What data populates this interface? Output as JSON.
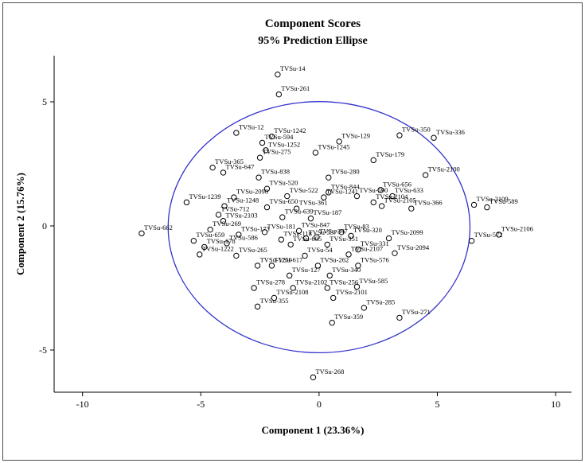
{
  "figure": {
    "title": "Component Scores",
    "subtitle": "95% Prediction Ellipse"
  },
  "chart_data": {
    "type": "scatter",
    "title": "Component Scores",
    "subtitle": "95% Prediction Ellipse",
    "xlabel": "Component 1 (23.36%)",
    "ylabel": "Component 2 (15.76%)",
    "xlim": [
      -11.2,
      10.67
    ],
    "ylim": [
      -6.7,
      6.86
    ],
    "xticks": [
      -10,
      -5,
      0,
      5,
      10
    ],
    "yticks": [
      -5,
      0,
      5
    ],
    "grid": false,
    "legend": "none",
    "marker": "open-circle",
    "marker_color": "#000000",
    "ellipse": {
      "label": "95% Prediction Ellipse",
      "cx": 0.0,
      "cy": -0.05,
      "rx": 6.38,
      "ry": 5.06,
      "color": "#3333cc"
    },
    "points": [
      {
        "label": "TVSu-14",
        "x": -1.75,
        "y": 6.1
      },
      {
        "label": "TVSu-261",
        "x": -1.7,
        "y": 5.3
      },
      {
        "label": "TVSu-12",
        "x": -3.5,
        "y": 3.75
      },
      {
        "label": "TVSu-1242",
        "x": -2.0,
        "y": 3.6
      },
      {
        "label": "TVSu-594",
        "x": -2.4,
        "y": 3.35
      },
      {
        "label": "TVSu-129",
        "x": 0.85,
        "y": 3.4
      },
      {
        "label": "TVSu-350",
        "x": 3.4,
        "y": 3.65
      },
      {
        "label": "TVSu-336",
        "x": 4.85,
        "y": 3.55
      },
      {
        "label": "TVSu-1252",
        "x": -2.25,
        "y": 3.05
      },
      {
        "label": "TVSu-1245",
        "x": -0.15,
        "y": 2.95
      },
      {
        "label": "TVSu-275",
        "x": -2.5,
        "y": 2.75
      },
      {
        "label": "TVSu-179",
        "x": 2.3,
        "y": 2.65
      },
      {
        "label": "TVSu-365",
        "x": -4.5,
        "y": 2.35
      },
      {
        "label": "TVSu-647",
        "x": -4.05,
        "y": 2.15
      },
      {
        "label": "TVSu-838",
        "x": -2.55,
        "y": 1.95
      },
      {
        "label": "TVSu-280",
        "x": 0.4,
        "y": 1.95
      },
      {
        "label": "TVSu-2100",
        "x": 4.5,
        "y": 2.05
      },
      {
        "label": "TVSu-520",
        "x": -2.2,
        "y": 1.5
      },
      {
        "label": "TVSu-2090",
        "x": -3.6,
        "y": 1.15
      },
      {
        "label": "TVSu-522",
        "x": -1.35,
        "y": 1.2
      },
      {
        "label": "TVSu-844",
        "x": 0.4,
        "y": 1.35
      },
      {
        "label": "TVSu-1241",
        "x": 0.2,
        "y": 1.15
      },
      {
        "label": "TVSu-590",
        "x": 1.6,
        "y": 1.2
      },
      {
        "label": "TVSu-656",
        "x": 2.6,
        "y": 1.45
      },
      {
        "label": "TVSu-633",
        "x": 3.1,
        "y": 1.2
      },
      {
        "label": "TVSu-2104",
        "x": 2.3,
        "y": 0.95
      },
      {
        "label": "TVSu-1239",
        "x": -5.6,
        "y": 0.95
      },
      {
        "label": "TVSu-1248",
        "x": -4.0,
        "y": 0.8
      },
      {
        "label": "TVSu-650",
        "x": -2.2,
        "y": 0.75
      },
      {
        "label": "TVSu-361",
        "x": -0.95,
        "y": 0.7
      },
      {
        "label": "TVSu-2105",
        "x": 2.65,
        "y": 0.8
      },
      {
        "label": "TVSu-366",
        "x": 3.9,
        "y": 0.7
      },
      {
        "label": "TVSu-2109",
        "x": 6.55,
        "y": 0.85
      },
      {
        "label": "TVSu-589",
        "x": 7.1,
        "y": 0.75
      },
      {
        "label": "TVSu-712",
        "x": -4.25,
        "y": 0.45
      },
      {
        "label": "TVSu-2103",
        "x": -4.05,
        "y": 0.2
      },
      {
        "label": "TVSu-639",
        "x": -1.55,
        "y": 0.35
      },
      {
        "label": "TVSu-187",
        "x": -0.35,
        "y": 0.3
      },
      {
        "label": "TVSu-662",
        "x": -7.5,
        "y": -0.3
      },
      {
        "label": "TVSu-269",
        "x": -4.6,
        "y": -0.15
      },
      {
        "label": "TVSu-173",
        "x": -3.4,
        "y": -0.35
      },
      {
        "label": "TVSu-181",
        "x": -2.3,
        "y": -0.25
      },
      {
        "label": "TVSu-847",
        "x": -0.85,
        "y": -0.2
      },
      {
        "label": "TVSu-83",
        "x": 0.95,
        "y": -0.25
      },
      {
        "label": "TVSu-320",
        "x": 1.35,
        "y": -0.4
      },
      {
        "label": "TVSu-2099",
        "x": 2.95,
        "y": -0.5
      },
      {
        "label": "TVSu-659",
        "x": -5.3,
        "y": -0.6
      },
      {
        "label": "TVSu-178",
        "x": -4.85,
        "y": -0.85
      },
      {
        "label": "TVSu-586",
        "x": -3.9,
        "y": -0.7
      },
      {
        "label": "TVSu-118",
        "x": -1.6,
        "y": -0.55
      },
      {
        "label": "TVSu-605",
        "x": -1.2,
        "y": -0.75
      },
      {
        "label": "TVSu-537",
        "x": -0.55,
        "y": -0.5
      },
      {
        "label": "TVSu-347",
        "x": -0.1,
        "y": -0.45
      },
      {
        "label": "TVSu-351",
        "x": 0.35,
        "y": -0.75
      },
      {
        "label": "TVSu-331",
        "x": 1.65,
        "y": -0.95
      },
      {
        "label": "TVSu-2106",
        "x": 7.6,
        "y": -0.35
      },
      {
        "label": "TVSu-572",
        "x": 6.45,
        "y": -0.6
      },
      {
        "label": "TVSu-1222",
        "x": -5.05,
        "y": -1.15
      },
      {
        "label": "TVSu-265",
        "x": -3.5,
        "y": -1.2
      },
      {
        "label": "TVSu-54",
        "x": -0.6,
        "y": -1.2
      },
      {
        "label": "TVSu-2107",
        "x": 1.25,
        "y": -1.15
      },
      {
        "label": "TVSu-2094",
        "x": 3.2,
        "y": -1.1
      },
      {
        "label": "TVSu-1250",
        "x": -2.6,
        "y": -1.6
      },
      {
        "label": "TVSu-617",
        "x": -2.0,
        "y": -1.6
      },
      {
        "label": "TVSu-262",
        "x": -0.05,
        "y": -1.6
      },
      {
        "label": "TVSu-576",
        "x": 1.65,
        "y": -1.6
      },
      {
        "label": "TVSu-127",
        "x": -1.25,
        "y": -2.0
      },
      {
        "label": "TVSu-340",
        "x": 0.45,
        "y": -2.0
      },
      {
        "label": "TVSu-278",
        "x": -2.75,
        "y": -2.5
      },
      {
        "label": "TVSu-2102",
        "x": -1.1,
        "y": -2.5
      },
      {
        "label": "TVSu-256",
        "x": 0.35,
        "y": -2.5
      },
      {
        "label": "TVSu-585",
        "x": 1.6,
        "y": -2.45
      },
      {
        "label": "TVSu-2108",
        "x": -1.9,
        "y": -2.9
      },
      {
        "label": "TVSu-2101",
        "x": 0.6,
        "y": -2.9
      },
      {
        "label": "TVSu-355",
        "x": -2.6,
        "y": -3.25
      },
      {
        "label": "TVSu-285",
        "x": 1.9,
        "y": -3.3
      },
      {
        "label": "TVSu-359",
        "x": 0.55,
        "y": -3.9
      },
      {
        "label": "TVSu-271",
        "x": 3.4,
        "y": -3.7
      },
      {
        "label": "TVSu-268",
        "x": -0.25,
        "y": -6.1
      }
    ]
  }
}
